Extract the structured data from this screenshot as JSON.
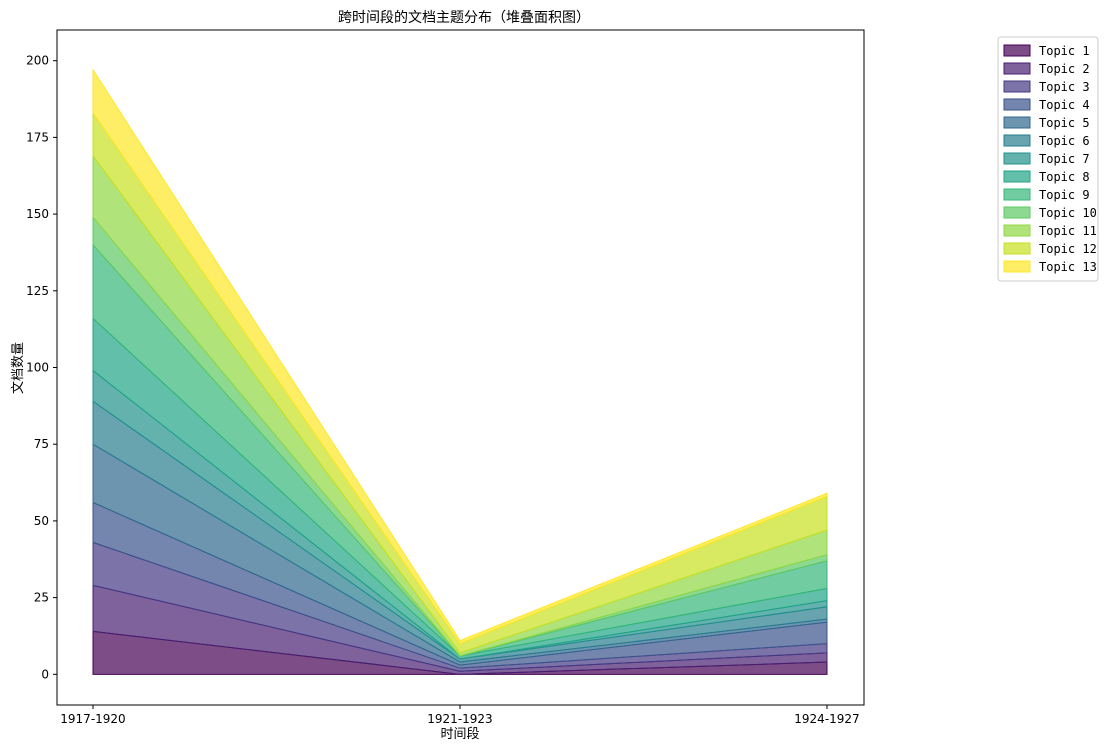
{
  "chart_data": {
    "type": "area",
    "stacked": true,
    "title": "跨时间段的文档主题分布（堆叠面积图）",
    "xlabel": "时间段",
    "ylabel": "文档数量",
    "categories": [
      "1917-1920",
      "1921-1923",
      "1924-1927"
    ],
    "ylim": [
      -10,
      210
    ],
    "yticks": [
      0,
      25,
      50,
      75,
      100,
      125,
      150,
      175,
      200
    ],
    "grid": false,
    "legend_position": "upper-right-outside",
    "colormap": "viridis",
    "series": [
      {
        "name": "Topic 1",
        "values": [
          14,
          0,
          4
        ],
        "color": "#440154"
      },
      {
        "name": "Topic 2",
        "values": [
          15,
          1,
          3
        ],
        "color": "#481f70"
      },
      {
        "name": "Topic 3",
        "values": [
          14,
          1,
          3
        ],
        "color": "#443983"
      },
      {
        "name": "Topic 4",
        "values": [
          13,
          1,
          7
        ],
        "color": "#3b528b"
      },
      {
        "name": "Topic 5",
        "values": [
          19,
          1,
          1
        ],
        "color": "#31688e"
      },
      {
        "name": "Topic 6",
        "values": [
          14,
          1,
          4
        ],
        "color": "#287c8e"
      },
      {
        "name": "Topic 7",
        "values": [
          10,
          0,
          2
        ],
        "color": "#21918c"
      },
      {
        "name": "Topic 8",
        "values": [
          17,
          1,
          4
        ],
        "color": "#20a486"
      },
      {
        "name": "Topic 9",
        "values": [
          24,
          0,
          9
        ],
        "color": "#35b779"
      },
      {
        "name": "Topic 10",
        "values": [
          9,
          0,
          2
        ],
        "color": "#5ec962"
      },
      {
        "name": "Topic 11",
        "values": [
          20,
          1,
          8
        ],
        "color": "#90d743"
      },
      {
        "name": "Topic 12",
        "values": [
          14,
          3,
          11
        ],
        "color": "#c8e020"
      },
      {
        "name": "Topic 13",
        "values": [
          14,
          1,
          1
        ],
        "color": "#fde725"
      }
    ]
  }
}
